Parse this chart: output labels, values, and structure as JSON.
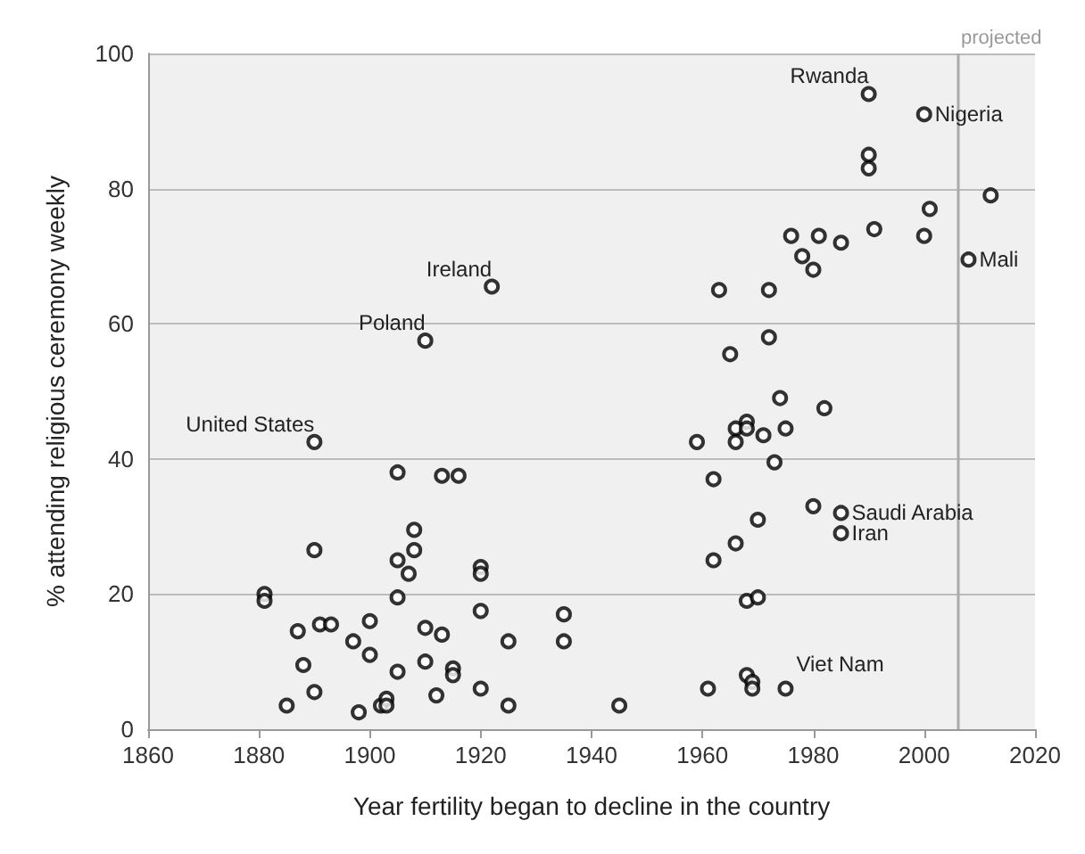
{
  "chart_data": {
    "type": "scatter",
    "xlabel": "Year fertility began to decline in the country",
    "ylabel": "% attending religious ceremony weekly",
    "x": [
      1990,
      2000,
      1990,
      1990,
      2012,
      2001,
      1991,
      2000,
      1976,
      1981,
      1985,
      1978,
      1980,
      2008,
      1963,
      1972,
      1972,
      1965,
      1922,
      1910,
      1890,
      1905,
      1913,
      1916,
      1908,
      1890,
      1908,
      1905,
      1907,
      1920,
      1920,
      1881,
      1881,
      1905,
      1920,
      1935,
      1935,
      1887,
      1891,
      1893,
      1900,
      1897,
      1910,
      1913,
      1925,
      1900,
      1888,
      1905,
      1910,
      1915,
      1915,
      1890,
      1912,
      1920,
      1885,
      1898,
      1902,
      1903,
      1903,
      1925,
      1945,
      1974,
      1982,
      1959,
      1966,
      1966,
      1968,
      1968,
      1971,
      1975,
      1973,
      1962,
      1980,
      1985,
      1985,
      1970,
      1966,
      1962,
      1968,
      1970,
      1961,
      1968,
      1969,
      1969,
      1975
    ],
    "series": [
      {
        "color": "#000000",
        "values": [
          94,
          91,
          85,
          83,
          79,
          77,
          74,
          73,
          73,
          73,
          72,
          70,
          68,
          69.5,
          65,
          65,
          58,
          55.5,
          65.5,
          57.5,
          42.5,
          38,
          37.5,
          37.5,
          29.5,
          26.5,
          26.5,
          25,
          23,
          24,
          23,
          20,
          19,
          19.5,
          17.5,
          17,
          13,
          14.5,
          15.5,
          15.5,
          16,
          13,
          15,
          14,
          13,
          11,
          9.5,
          8.5,
          10,
          9,
          8,
          5.5,
          5,
          6,
          3.5,
          2.5,
          3.5,
          4.5,
          3.5,
          3.5,
          3.5,
          49,
          47.5,
          42.5,
          44.5,
          42.5,
          45.5,
          44.5,
          43.5,
          44.5,
          39.5,
          37,
          33,
          32,
          29,
          31,
          27.5,
          25,
          19,
          19.5,
          6,
          8,
          7,
          6,
          6
        ]
      }
    ],
    "xlim": [
      1860,
      2020
    ],
    "xticks": [
      1860,
      1880,
      1900,
      1920,
      1940,
      1960,
      1980,
      2000,
      2020
    ],
    "ylim": [
      0,
      100
    ],
    "yticks": [
      0,
      20,
      40,
      60,
      80,
      100
    ],
    "grid": "y",
    "marker": "circle",
    "ref_lines": [
      {
        "axis": "x",
        "value": 2006,
        "label": "projected",
        "color": "#aaaaaa"
      }
    ],
    "annotations": [
      {
        "text": "Rwanda",
        "x": 1990,
        "y": 94
      },
      {
        "text": "Nigeria",
        "x": 2000,
        "y": 91
      },
      {
        "text": "Mali",
        "x": 2008,
        "y": 69.5
      },
      {
        "text": "Ireland",
        "x": 1922,
        "y": 65.5
      },
      {
        "text": "Poland",
        "x": 1910,
        "y": 57.5
      },
      {
        "text": "United States",
        "x": 1890,
        "y": 42.5
      },
      {
        "text": "Saudi Arabia",
        "x": 1985,
        "y": 32
      },
      {
        "text": "Iran",
        "x": 1985,
        "y": 29
      },
      {
        "text": "Viet Nam",
        "x": 1975,
        "y": 6
      }
    ]
  }
}
